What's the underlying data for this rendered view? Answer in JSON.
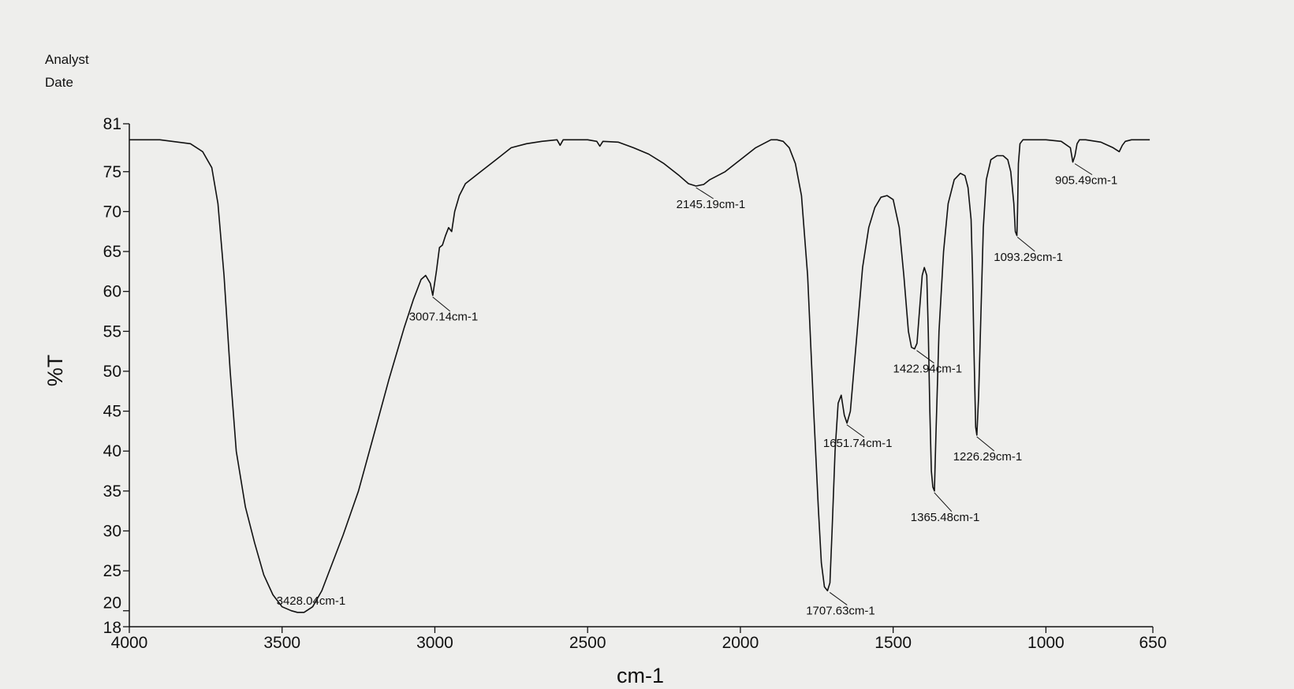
{
  "header": {
    "analyst_label": "Analyst",
    "date_label": "Date"
  },
  "chart_data": {
    "type": "line",
    "title": "",
    "xlabel": "cm-1",
    "ylabel": "%T",
    "xlim": [
      4000,
      650
    ],
    "ylim": [
      18,
      81
    ],
    "x_reversed": true,
    "x_ticks": [
      {
        "value": 4000,
        "label": "4000"
      },
      {
        "value": 3500,
        "label": "3500"
      },
      {
        "value": 3000,
        "label": "3000"
      },
      {
        "value": 2500,
        "label": "2500"
      },
      {
        "value": 2000,
        "label": "2000"
      },
      {
        "value": 1500,
        "label": "1500"
      },
      {
        "value": 1000,
        "label": "1000"
      },
      {
        "value": 650,
        "label": "650"
      }
    ],
    "y_ticks": [
      {
        "value": 81,
        "label": "81"
      },
      {
        "value": 75,
        "label": "75"
      },
      {
        "value": 70,
        "label": "70"
      },
      {
        "value": 65,
        "label": "65"
      },
      {
        "value": 60,
        "label": "60"
      },
      {
        "value": 55,
        "label": "55"
      },
      {
        "value": 50,
        "label": "50"
      },
      {
        "value": 45,
        "label": "45"
      },
      {
        "value": 40,
        "label": "40"
      },
      {
        "value": 35,
        "label": "35"
      },
      {
        "value": 30,
        "label": "30"
      },
      {
        "value": 25,
        "label": "25"
      },
      {
        "value": 20,
        "label": "20"
      },
      {
        "value": 18,
        "label": "18"
      }
    ],
    "series": [
      {
        "name": "spectrum",
        "x": [
          4000,
          3900,
          3800,
          3760,
          3730,
          3710,
          3690,
          3670,
          3650,
          3620,
          3590,
          3560,
          3530,
          3500,
          3470,
          3450,
          3428,
          3400,
          3370,
          3340,
          3300,
          3250,
          3200,
          3150,
          3100,
          3070,
          3045,
          3030,
          3015,
          3007,
          2995,
          2985,
          2975,
          2965,
          2955,
          2945,
          2935,
          2920,
          2900,
          2850,
          2800,
          2750,
          2700,
          2650,
          2600,
          2590,
          2580,
          2550,
          2500,
          2470,
          2460,
          2450,
          2400,
          2350,
          2300,
          2250,
          2200,
          2170,
          2145,
          2120,
          2100,
          2050,
          2000,
          1950,
          1900,
          1880,
          1860,
          1840,
          1820,
          1800,
          1780,
          1760,
          1745,
          1735,
          1725,
          1715,
          1707,
          1700,
          1690,
          1680,
          1670,
          1660,
          1651,
          1640,
          1620,
          1600,
          1580,
          1560,
          1540,
          1520,
          1500,
          1480,
          1465,
          1450,
          1440,
          1430,
          1422,
          1415,
          1405,
          1398,
          1390,
          1385,
          1380,
          1375,
          1370,
          1365,
          1360,
          1350,
          1335,
          1320,
          1300,
          1280,
          1265,
          1255,
          1245,
          1240,
          1235,
          1230,
          1226,
          1220,
          1212,
          1205,
          1195,
          1180,
          1160,
          1140,
          1125,
          1115,
          1105,
          1100,
          1095,
          1093,
          1090,
          1085,
          1075,
          1060,
          1040,
          1000,
          950,
          920,
          912,
          905,
          898,
          890,
          870,
          820,
          780,
          760,
          750,
          740,
          720,
          690,
          660
        ],
        "y": [
          79.0,
          79.0,
          78.5,
          77.5,
          75.5,
          71.0,
          62.0,
          50.0,
          40.0,
          33.0,
          28.5,
          24.5,
          22.0,
          20.5,
          20.0,
          19.8,
          19.8,
          20.5,
          22.5,
          25.5,
          29.5,
          35.0,
          42.0,
          49.0,
          55.5,
          59.0,
          61.5,
          62.0,
          61.0,
          59.5,
          62.5,
          65.5,
          65.8,
          67.0,
          68.0,
          67.5,
          70.0,
          72.0,
          73.5,
          75.0,
          76.5,
          78.0,
          78.5,
          78.8,
          79.0,
          78.3,
          79.0,
          79.0,
          79.0,
          78.8,
          78.2,
          78.8,
          78.7,
          78.0,
          77.2,
          76.0,
          74.5,
          73.5,
          73.2,
          73.4,
          74.0,
          75.0,
          76.5,
          78.0,
          79.0,
          79.0,
          78.8,
          78.0,
          76.0,
          72.0,
          62.0,
          45.0,
          33.0,
          26.0,
          23.0,
          22.5,
          23.5,
          30.0,
          40.0,
          46.0,
          47.0,
          44.5,
          43.5,
          45.0,
          54.0,
          63.0,
          68.0,
          70.5,
          71.8,
          72.0,
          71.5,
          68.0,
          62.0,
          55.0,
          53.0,
          52.8,
          53.5,
          57.0,
          62.0,
          63.0,
          62.0,
          55.0,
          45.0,
          37.5,
          35.5,
          35.0,
          42.0,
          55.0,
          65.0,
          71.0,
          74.0,
          74.8,
          74.5,
          73.0,
          69.0,
          62.0,
          52.0,
          43.0,
          42.0,
          47.0,
          58.0,
          68.0,
          74.0,
          76.5,
          77.0,
          77.0,
          76.5,
          75.0,
          71.0,
          67.5,
          67.0,
          70.0,
          76.0,
          78.5,
          79.0,
          79.0,
          79.0,
          79.0,
          78.8,
          78.0,
          76.2,
          77.0,
          78.5,
          79.0,
          79.0,
          78.7,
          78.0,
          77.5,
          78.3,
          78.8,
          79.0,
          79.0,
          79.0
        ]
      }
    ],
    "peak_labels": [
      {
        "x": 3428.04,
        "y": 19.8,
        "label": "3428.04cm-1"
      },
      {
        "x": 3007.14,
        "y": 59.5,
        "label": "3007.14cm-1"
      },
      {
        "x": 2145.19,
        "y": 73.2,
        "label": "2145.19cm-1"
      },
      {
        "x": 1707.63,
        "y": 22.5,
        "label": "1707.63cm-1"
      },
      {
        "x": 1651.74,
        "y": 43.5,
        "label": "1651.74cm-1"
      },
      {
        "x": 1422.94,
        "y": 52.8,
        "label": "1422.94cm-1"
      },
      {
        "x": 1365.48,
        "y": 35.0,
        "label": "1365.48cm-1"
      },
      {
        "x": 1226.29,
        "y": 42.0,
        "label": "1226.29cm-1"
      },
      {
        "x": 1093.29,
        "y": 67.0,
        "label": "1093.29cm-1"
      },
      {
        "x": 905.49,
        "y": 76.2,
        "label": "905.49cm-1"
      }
    ]
  }
}
